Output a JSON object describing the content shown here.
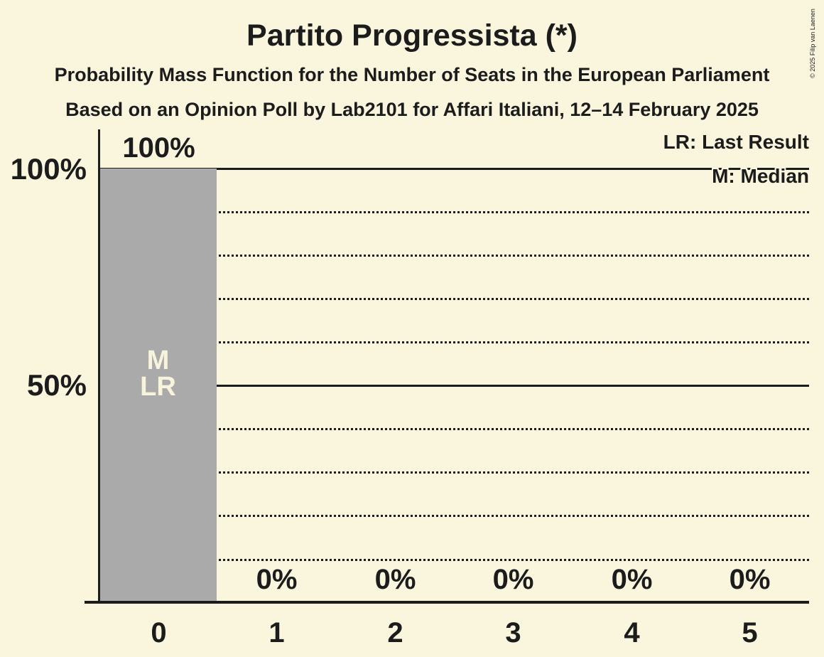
{
  "copyright": "© 2025 Filip van Laenen",
  "colors": {
    "background": "#FAF6DE",
    "text": "#1C1C1C",
    "bar": "#AAAAAA",
    "bar_annotation_text": "#F8F3DC"
  },
  "legend": {
    "last_result": "LR: Last Result",
    "median": "M: Median"
  },
  "chart_data": {
    "type": "bar",
    "title": "Partito Progressista (*)",
    "subtitle": "Probability Mass Function for the Number of Seats in the European Parliament",
    "source_line": "Based on an Opinion Poll by Lab2101 for Affari Italiani, 12–14 February 2025",
    "xlabel": "",
    "ylabel": "",
    "categories": [
      "0",
      "1",
      "2",
      "3",
      "4",
      "5"
    ],
    "values": [
      100,
      0,
      0,
      0,
      0,
      0
    ],
    "value_labels": [
      "100%",
      "0%",
      "0%",
      "0%",
      "0%",
      "0%"
    ],
    "ylim": [
      0,
      100
    ],
    "y_axis_ticks": [
      "100%",
      "50%"
    ],
    "solid_gridlines_pct": [
      100,
      50
    ],
    "dotted_gridlines_pct": [
      90,
      80,
      70,
      60,
      40,
      30,
      20,
      10
    ],
    "grid": "horizontal-only",
    "legend_position": "top-right",
    "bar_annotations": {
      "bar": "0",
      "lines": [
        "M",
        "LR"
      ]
    }
  }
}
